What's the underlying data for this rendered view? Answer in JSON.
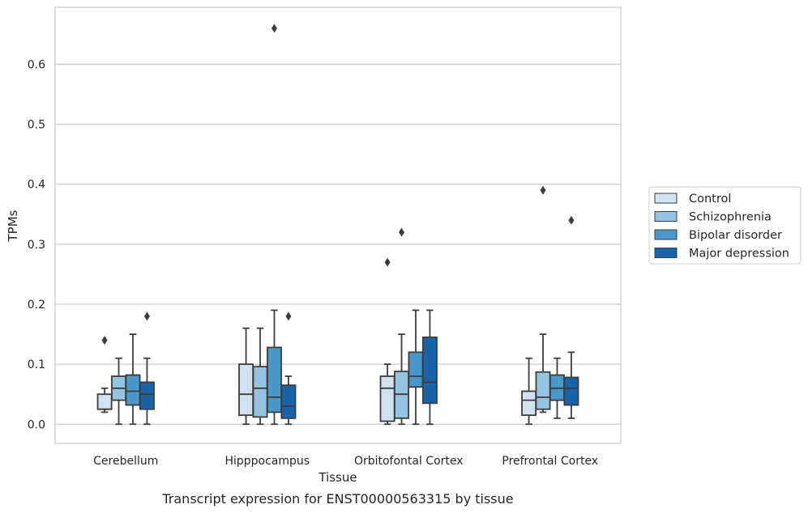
{
  "caption": "Transcript expression for ENST00000563315 by tissue",
  "chart_data": {
    "type": "box",
    "title": "",
    "xlabel": "Tissue",
    "ylabel": "TPMs",
    "ylim": [
      -0.032,
      0.695
    ],
    "yticks": [
      0.0,
      0.1,
      0.2,
      0.3,
      0.4,
      0.5,
      0.6
    ],
    "ytick_labels": [
      "0.0",
      "0.1",
      "0.2",
      "0.3",
      "0.4",
      "0.5",
      "0.6"
    ],
    "grid": "horizontal",
    "legend_position": "right",
    "categories": [
      "Cerebellum",
      "Hipppocampus",
      "Orbitofontal Cortex",
      "Prefrontal Cortex"
    ],
    "series": [
      {
        "name": "Control",
        "color": "#d0e1f2",
        "boxes": [
          {
            "whisker_low": 0.02,
            "q1": 0.025,
            "median": 0.025,
            "q3": 0.05,
            "whisker_high": 0.06,
            "outliers": [
              0.14
            ]
          },
          {
            "whisker_low": 0.0,
            "q1": 0.015,
            "median": 0.05,
            "q3": 0.1,
            "whisker_high": 0.16,
            "outliers": []
          },
          {
            "whisker_low": 0.0,
            "q1": 0.005,
            "median": 0.06,
            "q3": 0.08,
            "whisker_high": 0.1,
            "outliers": [
              0.27
            ]
          },
          {
            "whisker_low": 0.0,
            "q1": 0.015,
            "median": 0.04,
            "q3": 0.055,
            "whisker_high": 0.11,
            "outliers": []
          }
        ]
      },
      {
        "name": "Schizophrenia",
        "color": "#94c4df",
        "boxes": [
          {
            "whisker_low": 0.0,
            "q1": 0.04,
            "median": 0.06,
            "q3": 0.08,
            "whisker_high": 0.11,
            "outliers": []
          },
          {
            "whisker_low": 0.0,
            "q1": 0.012,
            "median": 0.06,
            "q3": 0.096,
            "whisker_high": 0.16,
            "outliers": []
          },
          {
            "whisker_low": 0.0,
            "q1": 0.01,
            "median": 0.05,
            "q3": 0.088,
            "whisker_high": 0.15,
            "outliers": [
              0.32
            ]
          },
          {
            "whisker_low": 0.02,
            "q1": 0.025,
            "median": 0.045,
            "q3": 0.087,
            "whisker_high": 0.15,
            "outliers": [
              0.39
            ]
          }
        ]
      },
      {
        "name": "Bipolar disorder",
        "color": "#4a98c9",
        "boxes": [
          {
            "whisker_low": 0.0,
            "q1": 0.032,
            "median": 0.055,
            "q3": 0.082,
            "whisker_high": 0.15,
            "outliers": []
          },
          {
            "whisker_low": 0.0,
            "q1": 0.02,
            "median": 0.045,
            "q3": 0.128,
            "whisker_high": 0.19,
            "outliers": [
              0.66
            ]
          },
          {
            "whisker_low": 0.0,
            "q1": 0.062,
            "median": 0.08,
            "q3": 0.12,
            "whisker_high": 0.19,
            "outliers": []
          },
          {
            "whisker_low": 0.01,
            "q1": 0.04,
            "median": 0.06,
            "q3": 0.082,
            "whisker_high": 0.11,
            "outliers": []
          }
        ]
      },
      {
        "name": "Major depression",
        "color": "#1764ab",
        "boxes": [
          {
            "whisker_low": 0.0,
            "q1": 0.025,
            "median": 0.05,
            "q3": 0.07,
            "whisker_high": 0.11,
            "outliers": [
              0.18
            ]
          },
          {
            "whisker_low": 0.0,
            "q1": 0.01,
            "median": 0.03,
            "q3": 0.065,
            "whisker_high": 0.08,
            "outliers": [
              0.18
            ]
          },
          {
            "whisker_low": 0.0,
            "q1": 0.035,
            "median": 0.07,
            "q3": 0.145,
            "whisker_high": 0.19,
            "outliers": []
          },
          {
            "whisker_low": 0.01,
            "q1": 0.032,
            "median": 0.06,
            "q3": 0.078,
            "whisker_high": 0.12,
            "outliers": [
              0.34
            ]
          }
        ]
      }
    ]
  }
}
